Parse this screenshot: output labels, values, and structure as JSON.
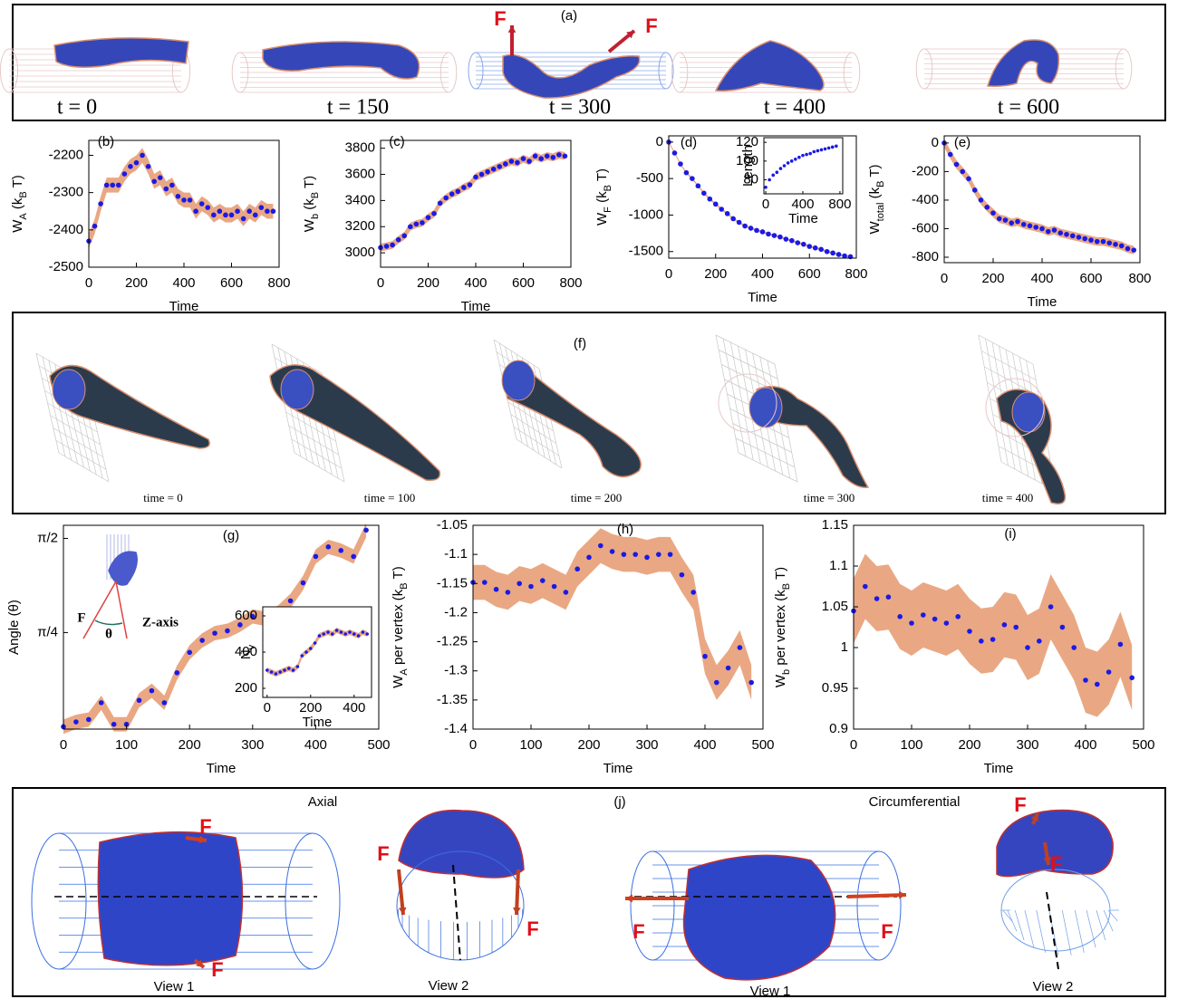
{
  "panel_a": {
    "label": "(a)",
    "force_labels": [
      "F",
      "F"
    ],
    "time_labels": [
      "t = 0",
      "t = 150",
      "t = 300",
      "t = 400",
      "t = 600"
    ]
  },
  "panel_f": {
    "label": "(f)",
    "time_labels": [
      "time = 0",
      "time = 100",
      "time = 200",
      "time = 300",
      "time = 400"
    ]
  },
  "panel_j": {
    "label": "(j)",
    "titles": [
      "Axial",
      "Circumferential"
    ],
    "view_labels": [
      "View 1",
      "View 2",
      "View 1",
      "View 2"
    ],
    "force_labels": [
      "F",
      "F",
      "F",
      "F",
      "F",
      "F",
      "F",
      "F"
    ]
  },
  "chart_data": [
    {
      "type": "scatter",
      "label": "(b)",
      "xlabel": "Time",
      "ylabel": [
        "W",
        "A",
        " (k",
        "B",
        " T)"
      ],
      "x": [
        0,
        25,
        50,
        75,
        100,
        125,
        150,
        175,
        200,
        225,
        250,
        275,
        300,
        325,
        350,
        375,
        400,
        425,
        450,
        475,
        500,
        525,
        550,
        575,
        600,
        625,
        650,
        675,
        700,
        725,
        750,
        775
      ],
      "values": [
        -2430,
        -2390,
        -2330,
        -2280,
        -2280,
        -2280,
        -2250,
        -2230,
        -2220,
        -2200,
        -2230,
        -2270,
        -2260,
        -2290,
        -2280,
        -2310,
        -2320,
        -2320,
        -2350,
        -2330,
        -2340,
        -2360,
        -2350,
        -2360,
        -2360,
        -2350,
        -2370,
        -2350,
        -2360,
        -2340,
        -2350,
        -2350
      ],
      "error": 20,
      "color": "#1a1ae6",
      "band_color": "#e9a883",
      "xlim": [
        0,
        800
      ],
      "xticks": [
        0,
        200,
        400,
        600,
        800
      ],
      "ylim": [
        -2500,
        -2160
      ],
      "yticks": [
        -2500,
        -2400,
        -2300,
        -2200
      ]
    },
    {
      "type": "scatter",
      "label": "(c)",
      "xlabel": "Time",
      "ylabel": [
        "W",
        "b",
        " (k",
        "B",
        " T)"
      ],
      "x": [
        0,
        25,
        50,
        75,
        100,
        125,
        150,
        175,
        200,
        225,
        250,
        275,
        300,
        325,
        350,
        375,
        400,
        425,
        450,
        475,
        500,
        525,
        550,
        575,
        600,
        625,
        650,
        675,
        700,
        725,
        750,
        775
      ],
      "values": [
        3040,
        3050,
        3060,
        3100,
        3130,
        3200,
        3220,
        3230,
        3270,
        3300,
        3380,
        3420,
        3450,
        3470,
        3500,
        3520,
        3580,
        3600,
        3620,
        3640,
        3660,
        3680,
        3700,
        3690,
        3720,
        3700,
        3740,
        3720,
        3740,
        3730,
        3750,
        3740
      ],
      "error": 30,
      "color": "#1a1ae6",
      "band_color": "#e9a883",
      "xlim": [
        0,
        800
      ],
      "xticks": [
        0,
        200,
        400,
        600,
        800
      ],
      "ylim": [
        2890,
        3860
      ],
      "yticks": [
        3000,
        3200,
        3400,
        3600,
        3800
      ]
    },
    {
      "type": "scatter",
      "label": "(d)",
      "xlabel": "Time",
      "ylabel": [
        "W",
        "F",
        " (k",
        "B",
        " T)"
      ],
      "x": [
        0,
        25,
        50,
        75,
        100,
        125,
        150,
        175,
        200,
        225,
        250,
        275,
        300,
        325,
        350,
        375,
        400,
        425,
        450,
        475,
        500,
        525,
        550,
        575,
        600,
        625,
        650,
        675,
        700,
        725,
        750,
        775
      ],
      "values": [
        0,
        -150,
        -300,
        -420,
        -500,
        -600,
        -700,
        -780,
        -850,
        -920,
        -980,
        -1050,
        -1100,
        -1150,
        -1180,
        -1210,
        -1230,
        -1260,
        -1280,
        -1300,
        -1330,
        -1350,
        -1380,
        -1400,
        -1430,
        -1450,
        -1470,
        -1500,
        -1520,
        -1540,
        -1560,
        -1570
      ],
      "error": 15,
      "color": "#1a1ae6",
      "band_color": "#e9a883",
      "xlim": [
        0,
        800
      ],
      "xticks": [
        0,
        200,
        400,
        600,
        800
      ],
      "ylim": [
        -1590,
        85
      ],
      "yticks": [
        -1500,
        -1000,
        -500,
        0
      ]
    },
    {
      "type": "scatter",
      "label": "(e)",
      "xlabel": "Time",
      "ylabel": [
        "W",
        "total",
        " (k",
        "B",
        " T)"
      ],
      "x": [
        0,
        25,
        50,
        75,
        100,
        125,
        150,
        175,
        200,
        225,
        250,
        275,
        300,
        325,
        350,
        375,
        400,
        425,
        450,
        475,
        500,
        525,
        550,
        575,
        600,
        625,
        650,
        675,
        700,
        725,
        750,
        775
      ],
      "values": [
        0,
        -80,
        -150,
        -200,
        -250,
        -330,
        -400,
        -450,
        -490,
        -530,
        -540,
        -560,
        -550,
        -570,
        -580,
        -590,
        -600,
        -620,
        -610,
        -630,
        -640,
        -650,
        -660,
        -670,
        -680,
        -690,
        -690,
        -700,
        -710,
        -720,
        -740,
        -750
      ],
      "error": 30,
      "color": "#1a1ae6",
      "band_color": "#e9a883",
      "xlim": [
        0,
        800
      ],
      "xticks": [
        0,
        200,
        400,
        600,
        800
      ],
      "ylim": [
        -838,
        50
      ],
      "yticks": [
        -800,
        -600,
        -400,
        -200,
        0
      ]
    },
    {
      "type": "scatter",
      "label": "(g)",
      "xlabel": "Time",
      "ylabel": [
        "Angle (θ)"
      ],
      "illustration_labels": [
        "F",
        "θ",
        "Z-axis"
      ],
      "x": [
        0,
        20,
        40,
        60,
        80,
        100,
        120,
        140,
        160,
        180,
        200,
        220,
        240,
        260,
        280,
        300,
        320,
        340,
        360,
        380,
        400,
        420,
        440,
        460,
        480
      ],
      "values": [
        0,
        0.04,
        0.06,
        0.2,
        0.02,
        0.02,
        0.22,
        0.3,
        0.2,
        0.45,
        0.62,
        0.72,
        0.78,
        0.8,
        0.85,
        0.92,
        0.9,
        0.95,
        1.05,
        1.2,
        1.42,
        1.5,
        1.47,
        1.42,
        1.64
      ],
      "error": 0.06,
      "color": "#1a1ae6",
      "band_color": "#e9a883",
      "xlim": [
        0,
        500
      ],
      "xticks": [
        0,
        100,
        200,
        300,
        400,
        500
      ],
      "ylim": [
        -0.02,
        1.68
      ],
      "yticks": [
        {
          "value": 0.7854,
          "label": "π/4"
        },
        {
          "value": 1.5708,
          "label": "π/2"
        }
      ]
    },
    {
      "type": "scatter",
      "label": "(h)",
      "xlabel": "Time",
      "ylabel": [
        "W",
        "A",
        " per vertex (k",
        "B",
        " T)"
      ],
      "x": [
        0,
        20,
        40,
        60,
        80,
        100,
        120,
        140,
        160,
        180,
        200,
        220,
        240,
        260,
        280,
        300,
        320,
        340,
        360,
        380,
        400,
        420,
        440,
        460,
        480
      ],
      "values": [
        -1.148,
        -1.148,
        -1.16,
        -1.165,
        -1.15,
        -1.155,
        -1.145,
        -1.155,
        -1.165,
        -1.125,
        -1.105,
        -1.085,
        -1.095,
        -1.1,
        -1.1,
        -1.105,
        -1.1,
        -1.1,
        -1.135,
        -1.165,
        -1.275,
        -1.32,
        -1.295,
        -1.26,
        -1.32
      ],
      "error": 0.03,
      "color": "#1a1ae6",
      "band_color": "#e9a883",
      "xlim": [
        0,
        500
      ],
      "xticks": [
        0,
        100,
        200,
        300,
        400,
        500
      ],
      "ylim": [
        -1.4,
        -1.05
      ],
      "yticks": [
        -1.4,
        -1.35,
        -1.3,
        -1.25,
        -1.2,
        -1.15,
        -1.1,
        -1.05
      ]
    },
    {
      "type": "scatter",
      "label": "(i)",
      "xlabel": "Time",
      "ylabel": [
        "W",
        "b",
        " per vertex (k",
        "B",
        " T)"
      ],
      "x": [
        0,
        20,
        40,
        60,
        80,
        100,
        120,
        140,
        160,
        180,
        200,
        220,
        240,
        260,
        280,
        300,
        320,
        340,
        360,
        380,
        400,
        420,
        440,
        460,
        480
      ],
      "values": [
        1.045,
        1.075,
        1.06,
        1.062,
        1.038,
        1.03,
        1.04,
        1.035,
        1.03,
        1.038,
        1.02,
        1.008,
        1.01,
        1.028,
        1.025,
        1.0,
        1.008,
        1.05,
        1.025,
        1.0,
        0.96,
        0.955,
        0.97,
        1.004,
        0.963
      ],
      "error": 0.04,
      "color": "#1a1ae6",
      "band_color": "#e9a883",
      "xlim": [
        0,
        500
      ],
      "xticks": [
        0,
        100,
        200,
        300,
        400,
        500
      ],
      "ylim": [
        0.9,
        1.15
      ],
      "yticks": [
        0.9,
        0.95,
        1,
        1.05,
        1.1,
        1.15
      ]
    },
    {
      "type": "scatter",
      "xlabel": "Time",
      "ylabel": [
        "Length"
      ],
      "x": [
        0,
        40,
        80,
        120,
        160,
        200,
        240,
        280,
        320,
        360,
        400,
        440,
        480,
        520,
        560,
        600,
        640,
        680,
        720,
        760
      ],
      "values": [
        72,
        80,
        85,
        88,
        92,
        95,
        98,
        100,
        102,
        104,
        106,
        107,
        108,
        110,
        111,
        112,
        113,
        114,
        115,
        116
      ],
      "color": "#1a1ae6",
      "xlim": [
        -20,
        830
      ],
      "xticks": [
        0,
        400,
        800
      ],
      "ylim": [
        65,
        125
      ],
      "yticks": [
        80,
        100,
        120
      ]
    },
    {
      "type": "scatter",
      "xlabel": "Time",
      "ylabel": [
        "N",
        "v"
      ],
      "x": [
        0,
        20,
        40,
        60,
        80,
        100,
        120,
        140,
        160,
        180,
        200,
        220,
        240,
        260,
        280,
        300,
        320,
        340,
        360,
        380,
        400,
        420,
        440,
        460
      ],
      "values": [
        300,
        290,
        280,
        290,
        300,
        310,
        300,
        320,
        380,
        400,
        420,
        450,
        490,
        500,
        510,
        500,
        520,
        510,
        500,
        510,
        500,
        490,
        510,
        500
      ],
      "error": 15,
      "color": "#1a1ae6",
      "band_color": "#e9a883",
      "xlim": [
        -20,
        480
      ],
      "xticks": [
        0,
        200,
        400
      ],
      "ylim": [
        150,
        650
      ],
      "yticks": [
        200,
        400,
        600
      ]
    }
  ]
}
